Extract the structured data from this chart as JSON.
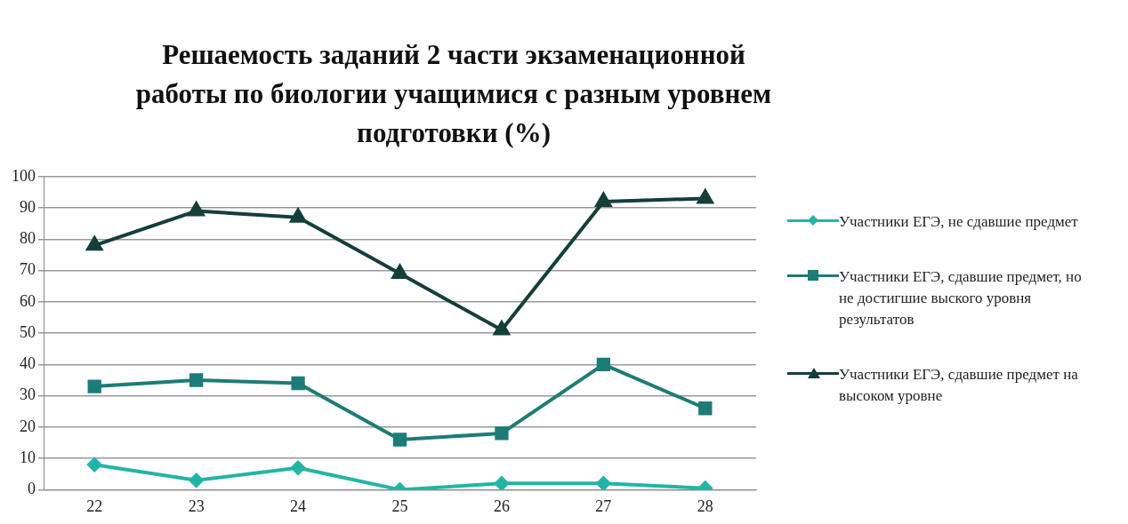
{
  "chart_data": {
    "type": "line",
    "title": "Решаемость заданий 2 части экзаменационной работы по биологии учащимися с разным уровнем подготовки (%)",
    "categories": [
      "22",
      "23",
      "24",
      "25",
      "26",
      "27",
      "28"
    ],
    "series": [
      {
        "name": "Участники ЕГЭ, не сдавшие предмет",
        "color": "#22b5a6",
        "marker": "diamond",
        "values": [
          8,
          3,
          7,
          0,
          2,
          2,
          0.5
        ]
      },
      {
        "name": "Участники ЕГЭ, сдавшие предмет, но не достигшие выского уровня результатов",
        "color": "#1d7c77",
        "marker": "square",
        "values": [
          33,
          35,
          34,
          16,
          18,
          40,
          26
        ]
      },
      {
        "name": "Участники ЕГЭ, сдавшие предмет на высоком уровне",
        "color": "#143f3b",
        "marker": "triangle",
        "values": [
          78,
          89,
          87,
          69,
          51,
          92,
          93
        ]
      }
    ],
    "ylim": [
      0,
      100
    ],
    "yticks": [
      0,
      10,
      20,
      30,
      40,
      50,
      60,
      70,
      80,
      90,
      100
    ],
    "grid": "y",
    "legend": "right",
    "line_style": "solid"
  }
}
